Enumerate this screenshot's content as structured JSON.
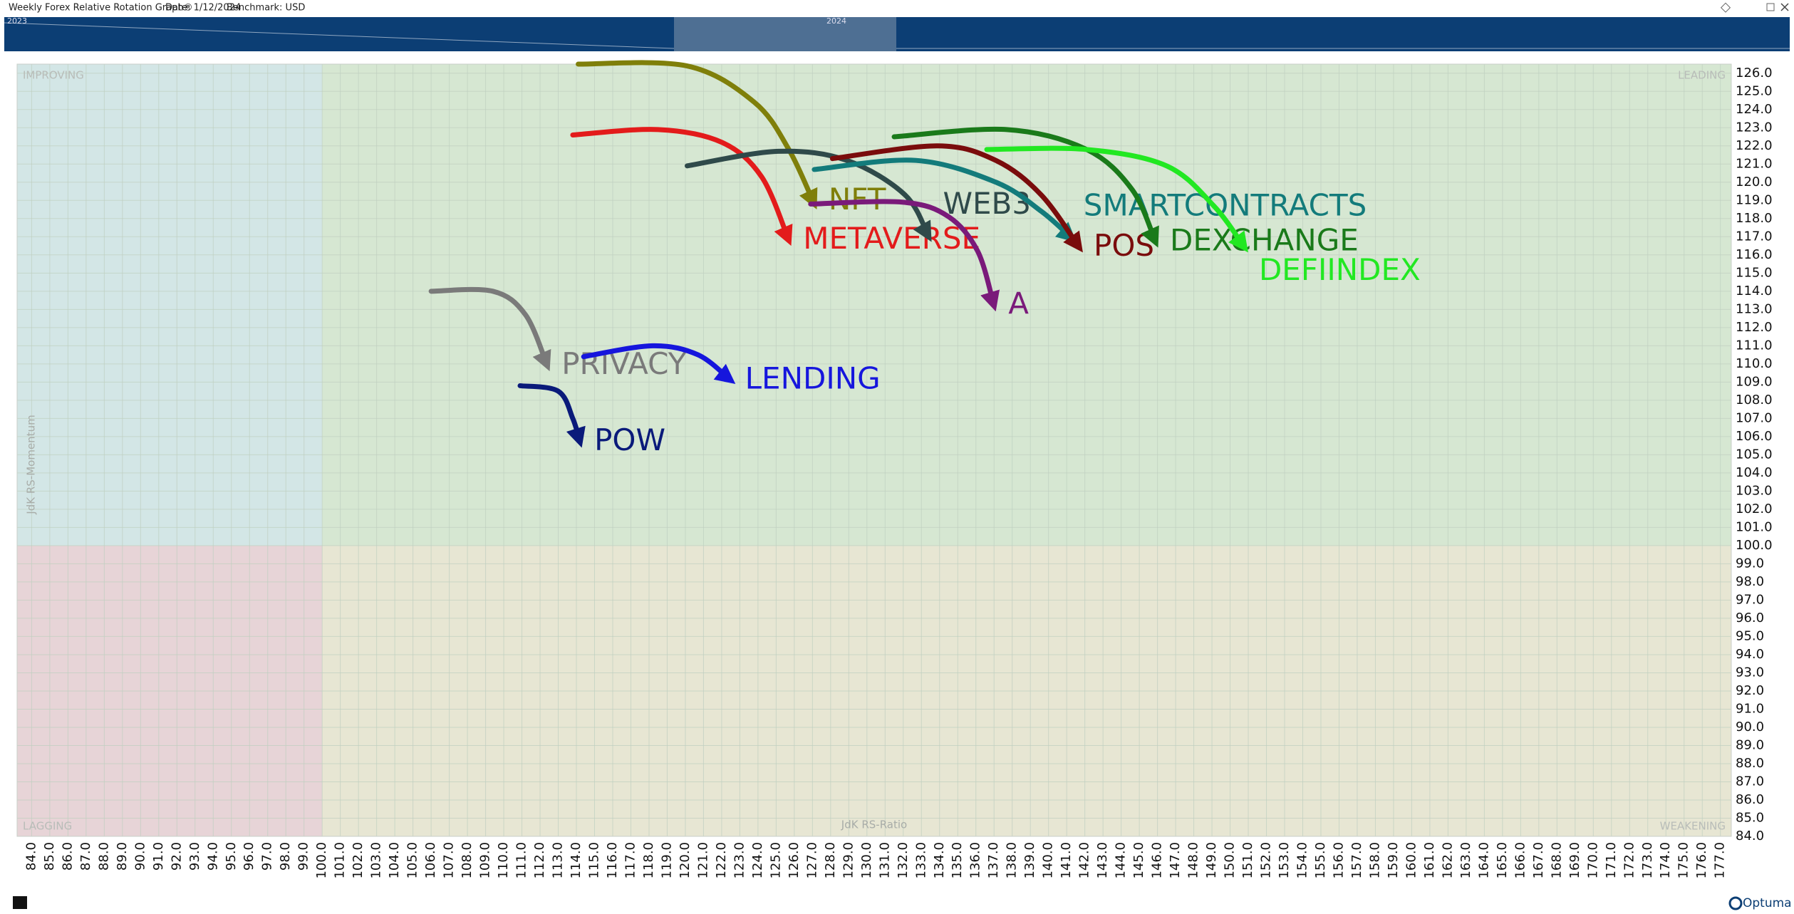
{
  "chart_data": {
    "type": "rrg",
    "title": "Weekly Forex Relative Rotation Graph®",
    "date_label": "Date: 1/12/2024",
    "benchmark_label": "Benchmark:  USD",
    "timeline": [
      "2023",
      "2024"
    ],
    "quadrants": {
      "improving": "IMPROVING",
      "leading": "LEADING",
      "lagging": "LAGGING",
      "weakening": "WEAKENING"
    },
    "xlabel": "JdK RS-Ratio",
    "ylabel": "JdK RS-Momentum",
    "logo": "Optuma",
    "xlim": [
      83.2,
      177.6
    ],
    "ylim": [
      84,
      126.5
    ],
    "grid": true,
    "xticks": [
      {
        "value": 84,
        "label": "84.0"
      },
      {
        "value": 85,
        "label": "85.0"
      },
      {
        "value": 86,
        "label": "86.0"
      },
      {
        "value": 87,
        "label": "87.0"
      },
      {
        "value": 88,
        "label": "88.0"
      },
      {
        "value": 89,
        "label": "89.0"
      },
      {
        "value": 90,
        "label": "90.0"
      },
      {
        "value": 91,
        "label": "91.0"
      },
      {
        "value": 92,
        "label": "92.0"
      },
      {
        "value": 93,
        "label": "93.0"
      },
      {
        "value": 94,
        "label": "94.0"
      },
      {
        "value": 95,
        "label": "95.0"
      },
      {
        "value": 96,
        "label": "96.0"
      },
      {
        "value": 97,
        "label": "97.0"
      },
      {
        "value": 98,
        "label": "98.0"
      },
      {
        "value": 99,
        "label": "99.0"
      },
      {
        "value": 100,
        "label": "100.0"
      },
      {
        "value": 101,
        "label": "101.0"
      },
      {
        "value": 102,
        "label": "102.0"
      },
      {
        "value": 103,
        "label": "103.0"
      },
      {
        "value": 104,
        "label": "104.0"
      },
      {
        "value": 105,
        "label": "105.0"
      },
      {
        "value": 106,
        "label": "106.0"
      },
      {
        "value": 107,
        "label": "107.0"
      },
      {
        "value": 108,
        "label": "108.0"
      },
      {
        "value": 109,
        "label": "109.0"
      },
      {
        "value": 110,
        "label": "110.0"
      },
      {
        "value": 111,
        "label": "111.0"
      },
      {
        "value": 112,
        "label": "112.0"
      },
      {
        "value": 113,
        "label": "113.0"
      },
      {
        "value": 114,
        "label": "114.0"
      },
      {
        "value": 115,
        "label": "115.0"
      },
      {
        "value": 116,
        "label": "116.0"
      },
      {
        "value": 117,
        "label": "117.0"
      },
      {
        "value": 118,
        "label": "118.0"
      },
      {
        "value": 119,
        "label": "119.0"
      },
      {
        "value": 120,
        "label": "120.0"
      },
      {
        "value": 121,
        "label": "121.0"
      },
      {
        "value": 122,
        "label": "122.0"
      },
      {
        "value": 123,
        "label": "123.0"
      },
      {
        "value": 124,
        "label": "124.0"
      },
      {
        "value": 125,
        "label": "125.0"
      },
      {
        "value": 126,
        "label": "126.0"
      },
      {
        "value": 127,
        "label": "127.0"
      },
      {
        "value": 128,
        "label": "128.0"
      },
      {
        "value": 129,
        "label": "129.0"
      },
      {
        "value": 130,
        "label": "130.0"
      },
      {
        "value": 131,
        "label": "131.0"
      },
      {
        "value": 132,
        "label": "132.0"
      },
      {
        "value": 133,
        "label": "133.0"
      },
      {
        "value": 134,
        "label": "134.0"
      },
      {
        "value": 135,
        "label": "135.0"
      },
      {
        "value": 136,
        "label": "136.0"
      },
      {
        "value": 137,
        "label": "137.0"
      },
      {
        "value": 138,
        "label": "138.0"
      },
      {
        "value": 139,
        "label": "139.0"
      },
      {
        "value": 140,
        "label": "140.0"
      },
      {
        "value": 141,
        "label": "141.0"
      },
      {
        "value": 142,
        "label": "142.0"
      },
      {
        "value": 143,
        "label": "143.0"
      },
      {
        "value": 144,
        "label": "144.0"
      },
      {
        "value": 145,
        "label": "145.0"
      },
      {
        "value": 146,
        "label": "146.0"
      },
      {
        "value": 147,
        "label": "147.0"
      },
      {
        "value": 148,
        "label": "148.0"
      },
      {
        "value": 149,
        "label": "149.0"
      },
      {
        "value": 150,
        "label": "150.0"
      },
      {
        "value": 151,
        "label": "151.0"
      },
      {
        "value": 152,
        "label": "152.0"
      },
      {
        "value": 153,
        "label": "153.0"
      },
      {
        "value": 154,
        "label": "154.0"
      },
      {
        "value": 155,
        "label": "155.0"
      },
      {
        "value": 156,
        "label": "156.0"
      },
      {
        "value": 157,
        "label": "157.0"
      },
      {
        "value": 158,
        "label": "158.0"
      },
      {
        "value": 159,
        "label": "159.0"
      },
      {
        "value": 160,
        "label": "160.0"
      },
      {
        "value": 161,
        "label": "161.0"
      },
      {
        "value": 162,
        "label": "162.0"
      },
      {
        "value": 163,
        "label": "163.0"
      },
      {
        "value": 164,
        "label": "164.0"
      },
      {
        "value": 165,
        "label": "165.0"
      },
      {
        "value": 166,
        "label": "166.0"
      },
      {
        "value": 167,
        "label": "167.0"
      },
      {
        "value": 168,
        "label": "168.0"
      },
      {
        "value": 169,
        "label": "169.0"
      },
      {
        "value": 170,
        "label": "170.0"
      },
      {
        "value": 171,
        "label": "171.0"
      },
      {
        "value": 172,
        "label": "172.0"
      },
      {
        "value": 173,
        "label": "173.0"
      },
      {
        "value": 174,
        "label": "174.0"
      },
      {
        "value": 175,
        "label": "175.0"
      },
      {
        "value": 176,
        "label": "176.0"
      },
      {
        "value": 177,
        "label": "177.0"
      }
    ],
    "yticks": [
      {
        "value": 84,
        "label": "84.0"
      },
      {
        "value": 85,
        "label": "85.0"
      },
      {
        "value": 86,
        "label": "86.0"
      },
      {
        "value": 87,
        "label": "87.0"
      },
      {
        "value": 88,
        "label": "88.0"
      },
      {
        "value": 89,
        "label": "89.0"
      },
      {
        "value": 90,
        "label": "90.0"
      },
      {
        "value": 91,
        "label": "91.0"
      },
      {
        "value": 92,
        "label": "92.0"
      },
      {
        "value": 93,
        "label": "93.0"
      },
      {
        "value": 94,
        "label": "94.0"
      },
      {
        "value": 95,
        "label": "95.0"
      },
      {
        "value": 96,
        "label": "96.0"
      },
      {
        "value": 97,
        "label": "97.0"
      },
      {
        "value": 98,
        "label": "98.0"
      },
      {
        "value": 99,
        "label": "99.0"
      },
      {
        "value": 100,
        "label": "100.0"
      },
      {
        "value": 101,
        "label": "101.0"
      },
      {
        "value": 102,
        "label": "102.0"
      },
      {
        "value": 103,
        "label": "103.0"
      },
      {
        "value": 104,
        "label": "104.0"
      },
      {
        "value": 105,
        "label": "105.0"
      },
      {
        "value": 106,
        "label": "106.0"
      },
      {
        "value": 107,
        "label": "107.0"
      },
      {
        "value": 108,
        "label": "108.0"
      },
      {
        "value": 109,
        "label": "109.0"
      },
      {
        "value": 110,
        "label": "110.0"
      },
      {
        "value": 111,
        "label": "111.0"
      },
      {
        "value": 112,
        "label": "112.0"
      },
      {
        "value": 113,
        "label": "113.0"
      },
      {
        "value": 114,
        "label": "114.0"
      },
      {
        "value": 115,
        "label": "115.0"
      },
      {
        "value": 116,
        "label": "116.0"
      },
      {
        "value": 117,
        "label": "117.0"
      },
      {
        "value": 118,
        "label": "118.0"
      },
      {
        "value": 119,
        "label": "119.0"
      },
      {
        "value": 120,
        "label": "120.0"
      },
      {
        "value": 121,
        "label": "121.0"
      },
      {
        "value": 122,
        "label": "122.0"
      },
      {
        "value": 123,
        "label": "123.0"
      },
      {
        "value": 124,
        "label": "124.0"
      },
      {
        "value": 125,
        "label": "125.0"
      },
      {
        "value": 126,
        "label": "126.0"
      }
    ],
    "series": [
      {
        "name": "NFT",
        "color": "#7f7f0a",
        "x": [
          114.1,
          120.1,
          123.8,
          125.7,
          127.1
        ],
        "values": [
          126.5,
          126.4,
          124.4,
          121.8,
          118.8
        ]
      },
      {
        "name": "METAVERSE",
        "color": "#e31b1b",
        "x": [
          113.8,
          118.5,
          122.0,
          124.2,
          125.7
        ],
        "values": [
          122.6,
          122.9,
          122.2,
          120.3,
          116.8
        ]
      },
      {
        "name": "WEB3",
        "color": "#2f4a4a",
        "x": [
          120.1,
          125.1,
          128.9,
          132.1,
          133.4
        ],
        "values": [
          120.9,
          121.7,
          121.2,
          119.3,
          117.0
        ]
      },
      {
        "name": "SMARTCONTRACTS",
        "color": "#137b7b",
        "x": [
          127.1,
          132.7,
          137.1,
          139.6,
          141.3
        ],
        "values": [
          120.7,
          121.2,
          120.0,
          118.4,
          116.9
        ]
      },
      {
        "name": "POS",
        "color": "#7a0c0c",
        "x": [
          128.1,
          133.9,
          137.1,
          139.6,
          141.7
        ],
        "values": [
          121.3,
          122.0,
          121.2,
          119.3,
          116.4
        ]
      },
      {
        "name": "DEXCHANGE",
        "color": "#1a7a1a",
        "x": [
          131.5,
          137.7,
          142.1,
          144.6,
          145.9
        ],
        "values": [
          122.5,
          122.9,
          121.8,
          119.6,
          116.7
        ]
      },
      {
        "name": "DEFIINDEX",
        "color": "#22e822",
        "x": [
          136.6,
          142.1,
          146.5,
          149.1,
          150.8
        ],
        "values": [
          121.8,
          121.8,
          120.9,
          118.7,
          116.4
        ]
      },
      {
        "name": "A",
        "color": "#7a1a7a",
        "x": [
          126.9,
          132.0,
          134.5,
          136.1,
          137.0
        ],
        "values": [
          118.8,
          118.9,
          118.1,
          116.2,
          113.2
        ]
      },
      {
        "name": "PRIVACY",
        "color": "#7a7a7a",
        "x": [
          106.0,
          109.4,
          111.2,
          112.4
        ],
        "values": [
          114.0,
          114.0,
          112.7,
          109.9
        ]
      },
      {
        "name": "LENDING",
        "color": "#1616dd",
        "x": [
          114.4,
          118.2,
          120.7,
          122.5
        ],
        "values": [
          110.4,
          111.0,
          110.5,
          109.1
        ]
      },
      {
        "name": "POW",
        "color": "#0a1a7a",
        "x": [
          110.9,
          113.0,
          113.8,
          114.2
        ],
        "values": [
          108.8,
          108.5,
          107.0,
          105.7
        ]
      }
    ]
  }
}
